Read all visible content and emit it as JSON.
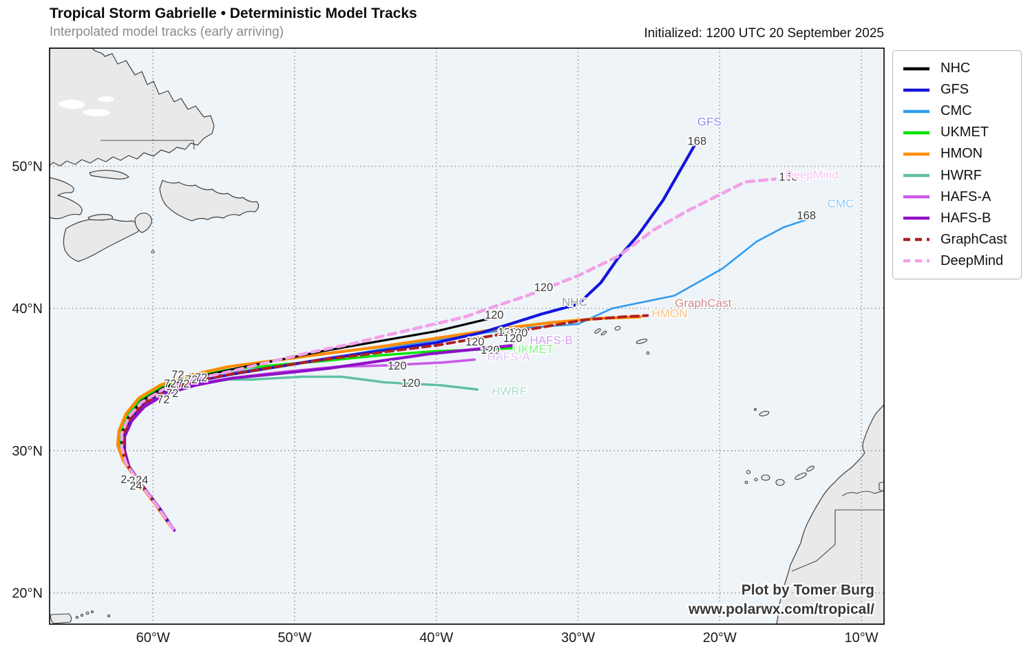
{
  "header": {
    "title": "Tropical Storm Gabrielle • Deterministic Model Tracks",
    "subtitle": "Interpolated model tracks (early arriving)",
    "initialized": "Initialized: 1200 UTC 20 September 2025"
  },
  "watermark": {
    "line1": "Plot by Tomer Burg",
    "line2": "www.polarwx.com/tropical/"
  },
  "chart_data": {
    "type": "line",
    "description": "Tropical cyclone deterministic model track map; x = longitude (deg, negative = W), y = latitude (deg N)",
    "axis": {
      "lon_range": [
        -67.3,
        -8.4
      ],
      "lat_range": [
        17.8,
        58.3
      ],
      "lon_gridlines": [
        -60,
        -50,
        -40,
        -30,
        -20,
        -10
      ],
      "lon_tick_labels": [
        "60°W",
        "50°W",
        "40°W",
        "30°W",
        "20°W",
        "10°W"
      ],
      "lat_gridlines": [
        20,
        30,
        40,
        50
      ],
      "lat_tick_labels": [
        "20°N",
        "30°N",
        "40°N",
        "50°N"
      ],
      "grid": "dotted"
    },
    "legend": [
      {
        "label": "NHC",
        "color": "#000000",
        "dash": "solid"
      },
      {
        "label": "GFS",
        "color": "#1414dc",
        "dash": "solid"
      },
      {
        "label": "CMC",
        "color": "#2e9bf0",
        "dash": "solid"
      },
      {
        "label": "UKMET",
        "color": "#00e400",
        "dash": "solid"
      },
      {
        "label": "HMON",
        "color": "#ff8c00",
        "dash": "solid"
      },
      {
        "label": "HWRF",
        "color": "#5fc0a0",
        "dash": "solid"
      },
      {
        "label": "HAFS-A",
        "color": "#cb5ae8",
        "dash": "solid"
      },
      {
        "label": "HAFS-B",
        "color": "#9010c8",
        "dash": "solid"
      },
      {
        "label": "GraphCast",
        "color": "#b02020",
        "dash": "dashed"
      },
      {
        "label": "DeepMind",
        "color": "#f2a0e8",
        "dash": "dashed"
      }
    ],
    "tracks": [
      {
        "name": "NHC",
        "color": "#000000",
        "width": 3.2,
        "dash": null,
        "points": [
          [
            -58.6,
            24.5
          ],
          [
            -59.7,
            26.1
          ],
          [
            -61.0,
            27.8
          ],
          [
            -61.9,
            29.1
          ],
          [
            -62.2,
            30.2
          ],
          [
            -62.2,
            31.2
          ],
          [
            -61.7,
            32.4
          ],
          [
            -60.8,
            33.5
          ],
          [
            -59.3,
            34.4
          ],
          [
            -57.2,
            35.1
          ],
          [
            -54.5,
            35.7
          ],
          [
            -51.5,
            36.3
          ],
          [
            -48.0,
            37.0
          ],
          [
            -44.0,
            37.7
          ],
          [
            -40.0,
            38.4
          ],
          [
            -36.2,
            39.3
          ]
        ]
      },
      {
        "name": "GFS",
        "color": "#1414dc",
        "width": 4.2,
        "dash": null,
        "points": [
          [
            -58.6,
            24.5
          ],
          [
            -59.6,
            26.0
          ],
          [
            -60.9,
            27.7
          ],
          [
            -61.8,
            29.0
          ],
          [
            -62.1,
            30.1
          ],
          [
            -62.1,
            31.1
          ],
          [
            -61.6,
            32.3
          ],
          [
            -60.7,
            33.3
          ],
          [
            -59.2,
            34.2
          ],
          [
            -57.0,
            34.9
          ],
          [
            -54.3,
            35.4
          ],
          [
            -51.2,
            35.9
          ],
          [
            -47.5,
            36.5
          ],
          [
            -44.0,
            37.0
          ],
          [
            -40.0,
            37.6
          ],
          [
            -36.8,
            38.3
          ],
          [
            -34.8,
            38.9
          ],
          [
            -32.6,
            39.6
          ],
          [
            -30.0,
            40.3
          ],
          [
            -28.4,
            41.8
          ],
          [
            -27.2,
            43.5
          ],
          [
            -25.8,
            45.1
          ],
          [
            -24.0,
            47.6
          ],
          [
            -21.7,
            51.6
          ]
        ]
      },
      {
        "name": "CMC",
        "color": "#2e9bf0",
        "width": 2.6,
        "dash": null,
        "points": [
          [
            -58.6,
            24.5
          ],
          [
            -59.6,
            26.1
          ],
          [
            -60.9,
            27.8
          ],
          [
            -61.8,
            29.1
          ],
          [
            -62.1,
            30.2
          ],
          [
            -62.1,
            31.2
          ],
          [
            -61.6,
            32.4
          ],
          [
            -60.7,
            33.4
          ],
          [
            -59.2,
            34.3
          ],
          [
            -57.0,
            35.0
          ],
          [
            -54.3,
            35.5
          ],
          [
            -51.0,
            36.0
          ],
          [
            -47.0,
            36.6
          ],
          [
            -43.5,
            37.2
          ],
          [
            -40.0,
            37.8
          ],
          [
            -36.5,
            38.3
          ],
          [
            -34.0,
            38.6
          ],
          [
            -30.0,
            38.9
          ],
          [
            -27.6,
            40.0
          ],
          [
            -23.2,
            40.9
          ],
          [
            -19.8,
            42.8
          ],
          [
            -17.4,
            44.7
          ],
          [
            -15.5,
            45.7
          ],
          [
            -13.7,
            46.3
          ]
        ]
      },
      {
        "name": "UKMET",
        "color": "#00e400",
        "width": 3.4,
        "dash": null,
        "points": [
          [
            -58.7,
            24.6
          ],
          [
            -59.8,
            26.2
          ],
          [
            -61.1,
            27.9
          ],
          [
            -62.0,
            29.2
          ],
          [
            -62.3,
            30.3
          ],
          [
            -62.3,
            31.3
          ],
          [
            -61.8,
            32.5
          ],
          [
            -60.9,
            33.6
          ],
          [
            -59.4,
            34.5
          ],
          [
            -57.3,
            35.2
          ],
          [
            -54.6,
            35.7
          ],
          [
            -51.6,
            36.0
          ],
          [
            -48.0,
            36.3
          ],
          [
            -44.0,
            36.7
          ],
          [
            -40.0,
            37.0
          ],
          [
            -37.0,
            37.1
          ],
          [
            -34.6,
            37.2
          ]
        ]
      },
      {
        "name": "HMON",
        "color": "#ff8c00",
        "width": 4.2,
        "dash": null,
        "points": [
          [
            -58.7,
            24.6
          ],
          [
            -59.9,
            26.3
          ],
          [
            -61.2,
            28.0
          ],
          [
            -62.1,
            29.3
          ],
          [
            -62.5,
            30.4
          ],
          [
            -62.4,
            31.4
          ],
          [
            -61.9,
            32.6
          ],
          [
            -61.0,
            33.7
          ],
          [
            -59.5,
            34.6
          ],
          [
            -57.4,
            35.3
          ],
          [
            -54.7,
            35.9
          ],
          [
            -51.7,
            36.3
          ],
          [
            -48.0,
            36.8
          ],
          [
            -44.0,
            37.3
          ],
          [
            -40.0,
            37.9
          ],
          [
            -36.0,
            38.5
          ],
          [
            -32.0,
            39.0
          ],
          [
            -28.5,
            39.3
          ],
          [
            -25.6,
            39.4
          ]
        ]
      },
      {
        "name": "HWRF",
        "color": "#5fc0a0",
        "width": 3.4,
        "dash": null,
        "points": [
          [
            -58.6,
            24.5
          ],
          [
            -59.7,
            26.1
          ],
          [
            -61.0,
            27.8
          ],
          [
            -61.9,
            29.1
          ],
          [
            -62.2,
            30.2
          ],
          [
            -62.2,
            31.1
          ],
          [
            -61.7,
            32.3
          ],
          [
            -60.8,
            33.3
          ],
          [
            -59.3,
            34.1
          ],
          [
            -57.2,
            34.7
          ],
          [
            -54.6,
            35.0
          ],
          [
            -53.0,
            35.0
          ],
          [
            -49.5,
            35.2
          ],
          [
            -46.7,
            35.2
          ],
          [
            -43.6,
            34.8
          ],
          [
            -39.7,
            34.6
          ],
          [
            -37.1,
            34.3
          ]
        ]
      },
      {
        "name": "HAFS-A",
        "color": "#cb5ae8",
        "width": 3.6,
        "dash": null,
        "points": [
          [
            -58.5,
            24.4
          ],
          [
            -59.6,
            26.0
          ],
          [
            -60.9,
            27.7
          ],
          [
            -61.8,
            29.0
          ],
          [
            -62.1,
            30.1
          ],
          [
            -62.1,
            31.0
          ],
          [
            -61.6,
            32.2
          ],
          [
            -60.7,
            33.2
          ],
          [
            -59.2,
            34.0
          ],
          [
            -57.1,
            34.7
          ],
          [
            -54.5,
            35.1
          ],
          [
            -51.2,
            35.5
          ],
          [
            -47.0,
            35.9
          ],
          [
            -43.5,
            36.0
          ],
          [
            -39.5,
            36.2
          ],
          [
            -37.3,
            36.4
          ]
        ]
      },
      {
        "name": "HAFS-B",
        "color": "#9010c8",
        "width": 4.2,
        "dash": null,
        "points": [
          [
            -58.5,
            24.4
          ],
          [
            -59.5,
            25.9
          ],
          [
            -60.8,
            27.6
          ],
          [
            -61.7,
            28.9
          ],
          [
            -62.0,
            30.0
          ],
          [
            -62.0,
            31.0
          ],
          [
            -61.5,
            32.1
          ],
          [
            -60.6,
            33.1
          ],
          [
            -59.1,
            34.0
          ],
          [
            -57.0,
            34.6
          ],
          [
            -54.4,
            35.1
          ],
          [
            -51.3,
            35.4
          ],
          [
            -47.5,
            35.8
          ],
          [
            -44.0,
            36.3
          ],
          [
            -40.5,
            36.8
          ],
          [
            -37.5,
            37.1
          ],
          [
            -34.5,
            37.4
          ]
        ]
      },
      {
        "name": "GraphCast",
        "color": "#b02020",
        "width": 4.0,
        "dash": "11 7",
        "points": [
          [
            -58.6,
            24.5
          ],
          [
            -59.6,
            26.0
          ],
          [
            -60.9,
            27.7
          ],
          [
            -61.8,
            29.0
          ],
          [
            -62.1,
            30.1
          ],
          [
            -62.1,
            31.1
          ],
          [
            -61.6,
            32.3
          ],
          [
            -60.7,
            33.3
          ],
          [
            -59.2,
            34.2
          ],
          [
            -57.1,
            34.9
          ],
          [
            -54.4,
            35.4
          ],
          [
            -51.3,
            35.9
          ],
          [
            -48.0,
            36.4
          ],
          [
            -44.0,
            36.9
          ],
          [
            -40.0,
            37.4
          ],
          [
            -36.5,
            38.0
          ],
          [
            -33.0,
            38.6
          ],
          [
            -29.5,
            39.2
          ],
          [
            -27.0,
            39.4
          ],
          [
            -25.1,
            39.5
          ]
        ]
      },
      {
        "name": "DeepMind",
        "color": "#f2a0e8",
        "width": 4.6,
        "dash": "11 8",
        "points": [
          [
            -58.6,
            24.5
          ],
          [
            -59.7,
            26.1
          ],
          [
            -61.0,
            27.8
          ],
          [
            -61.9,
            29.1
          ],
          [
            -62.2,
            30.2
          ],
          [
            -62.2,
            31.2
          ],
          [
            -61.7,
            32.4
          ],
          [
            -60.8,
            33.4
          ],
          [
            -59.3,
            34.3
          ],
          [
            -57.2,
            35.0
          ],
          [
            -54.4,
            35.6
          ],
          [
            -51.5,
            36.3
          ],
          [
            -48.5,
            37.0
          ],
          [
            -46.0,
            37.5
          ],
          [
            -44.0,
            38.0
          ],
          [
            -41.0,
            38.7
          ],
          [
            -38.0,
            39.4
          ],
          [
            -36.0,
            40.1
          ],
          [
            -33.6,
            40.9
          ],
          [
            -30.0,
            42.3
          ],
          [
            -27.1,
            43.7
          ],
          [
            -24.7,
            45.5
          ],
          [
            -22.2,
            46.9
          ],
          [
            -19.8,
            48.1
          ],
          [
            -18.2,
            48.9
          ],
          [
            -16.1,
            49.1
          ]
        ]
      }
    ],
    "hour_labels": [
      {
        "text": "24",
        "lon": -61.84,
        "lat": 27.97
      },
      {
        "text": "24",
        "lon": -61.26,
        "lat": 27.87
      },
      {
        "text": "24",
        "lon": -60.78,
        "lat": 27.92
      },
      {
        "text": "24",
        "lon": -61.21,
        "lat": 27.49
      },
      {
        "text": "72",
        "lon": -58.25,
        "lat": 35.31
      },
      {
        "text": "72",
        "lon": -57.28,
        "lat": 34.98
      },
      {
        "text": "72",
        "lon": -56.6,
        "lat": 35.12
      },
      {
        "text": "72",
        "lon": -58.79,
        "lat": 34.69
      },
      {
        "text": "72",
        "lon": -57.86,
        "lat": 34.69
      },
      {
        "text": "72",
        "lon": -58.64,
        "lat": 34.01
      },
      {
        "text": "72",
        "lon": -59.27,
        "lat": 33.57
      },
      {
        "text": "120",
        "lon": -35.92,
        "lat": 39.52
      },
      {
        "text": "120",
        "lon": -35.0,
        "lat": 38.31
      },
      {
        "text": "120",
        "lon": -34.22,
        "lat": 38.26
      },
      {
        "text": "120",
        "lon": -34.61,
        "lat": 37.87
      },
      {
        "text": "120",
        "lon": -37.28,
        "lat": 37.63
      },
      {
        "text": "120",
        "lon": -36.21,
        "lat": 37.05
      },
      {
        "text": "120",
        "lon": -42.77,
        "lat": 35.94
      },
      {
        "text": "120",
        "lon": -41.8,
        "lat": 34.73
      },
      {
        "text": "120",
        "lon": -32.43,
        "lat": 41.45
      },
      {
        "text": "168",
        "lon": -21.6,
        "lat": 51.74
      },
      {
        "text": "168",
        "lon": -15.15,
        "lat": 49.23
      },
      {
        "text": "168",
        "lon": -13.88,
        "lat": 46.52
      }
    ],
    "model_labels": [
      {
        "text": "GFS",
        "lon": -20.73,
        "lat": 53.14,
        "color": "#8c8cf2"
      },
      {
        "text": "DeepMind",
        "lon": -13.5,
        "lat": 49.42,
        "color": "#f6c2ef"
      },
      {
        "text": "CMC",
        "lon": -11.46,
        "lat": 47.39,
        "color": "#8fcaf6"
      },
      {
        "text": "NHC",
        "lon": -30.24,
        "lat": 40.48,
        "color": "#9a9a9a"
      },
      {
        "text": "GraphCast",
        "lon": -21.17,
        "lat": 40.39,
        "color": "#d38787"
      },
      {
        "text": "HMON",
        "lon": -23.54,
        "lat": 39.66,
        "color": "#ffc278"
      },
      {
        "text": "HAFS-B",
        "lon": -31.89,
        "lat": 37.78,
        "color": "#d29bee"
      },
      {
        "text": "UKMET",
        "lon": -33.16,
        "lat": 37.15,
        "color": "#86f286"
      },
      {
        "text": "HAFS-A",
        "lon": -34.9,
        "lat": 36.62,
        "color": "#e3c3f4"
      },
      {
        "text": "HWRF",
        "lon": -34.85,
        "lat": 34.2,
        "color": "#abdccb"
      }
    ]
  }
}
